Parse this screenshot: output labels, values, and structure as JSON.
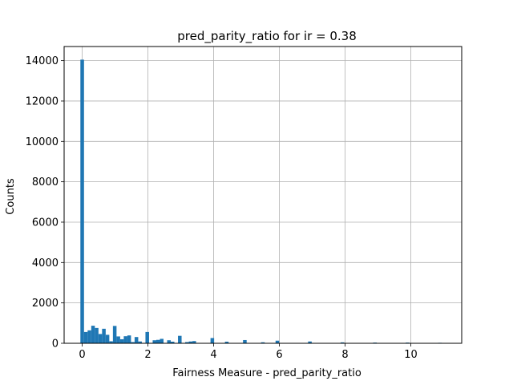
{
  "chart_data": {
    "type": "bar",
    "title": "pred_parity_ratio for ir = 0.38",
    "xlabel": "Fairness Measure - pred_parity_ratio",
    "ylabel": "Counts",
    "xlim": [
      -0.55,
      11.55
    ],
    "ylim": [
      0,
      14700
    ],
    "xticks": [
      0,
      2,
      4,
      6,
      8,
      10
    ],
    "yticks": [
      0,
      2000,
      4000,
      6000,
      8000,
      10000,
      12000,
      14000
    ],
    "grid": true,
    "bin_width": 0.11,
    "bar_color": "#1f77b4",
    "bins": [
      {
        "x": 0.0,
        "count": 14050
      },
      {
        "x": 0.11,
        "count": 560
      },
      {
        "x": 0.22,
        "count": 640
      },
      {
        "x": 0.33,
        "count": 870
      },
      {
        "x": 0.44,
        "count": 760
      },
      {
        "x": 0.55,
        "count": 460
      },
      {
        "x": 0.66,
        "count": 720
      },
      {
        "x": 0.77,
        "count": 420
      },
      {
        "x": 0.88,
        "count": 100
      },
      {
        "x": 0.99,
        "count": 860
      },
      {
        "x": 1.1,
        "count": 340
      },
      {
        "x": 1.21,
        "count": 200
      },
      {
        "x": 1.32,
        "count": 350
      },
      {
        "x": 1.43,
        "count": 390
      },
      {
        "x": 1.54,
        "count": 60
      },
      {
        "x": 1.65,
        "count": 310
      },
      {
        "x": 1.76,
        "count": 90
      },
      {
        "x": 1.98,
        "count": 560
      },
      {
        "x": 2.2,
        "count": 150
      },
      {
        "x": 2.31,
        "count": 170
      },
      {
        "x": 2.42,
        "count": 220
      },
      {
        "x": 2.64,
        "count": 150
      },
      {
        "x": 2.75,
        "count": 80
      },
      {
        "x": 2.97,
        "count": 370
      },
      {
        "x": 3.19,
        "count": 60
      },
      {
        "x": 3.3,
        "count": 90
      },
      {
        "x": 3.41,
        "count": 110
      },
      {
        "x": 3.96,
        "count": 260
      },
      {
        "x": 4.4,
        "count": 80
      },
      {
        "x": 4.95,
        "count": 160
      },
      {
        "x": 5.5,
        "count": 50
      },
      {
        "x": 5.94,
        "count": 130
      },
      {
        "x": 6.93,
        "count": 90
      },
      {
        "x": 7.92,
        "count": 45
      },
      {
        "x": 8.91,
        "count": 35
      },
      {
        "x": 9.9,
        "count": 35
      },
      {
        "x": 10.89,
        "count": 25
      }
    ]
  }
}
